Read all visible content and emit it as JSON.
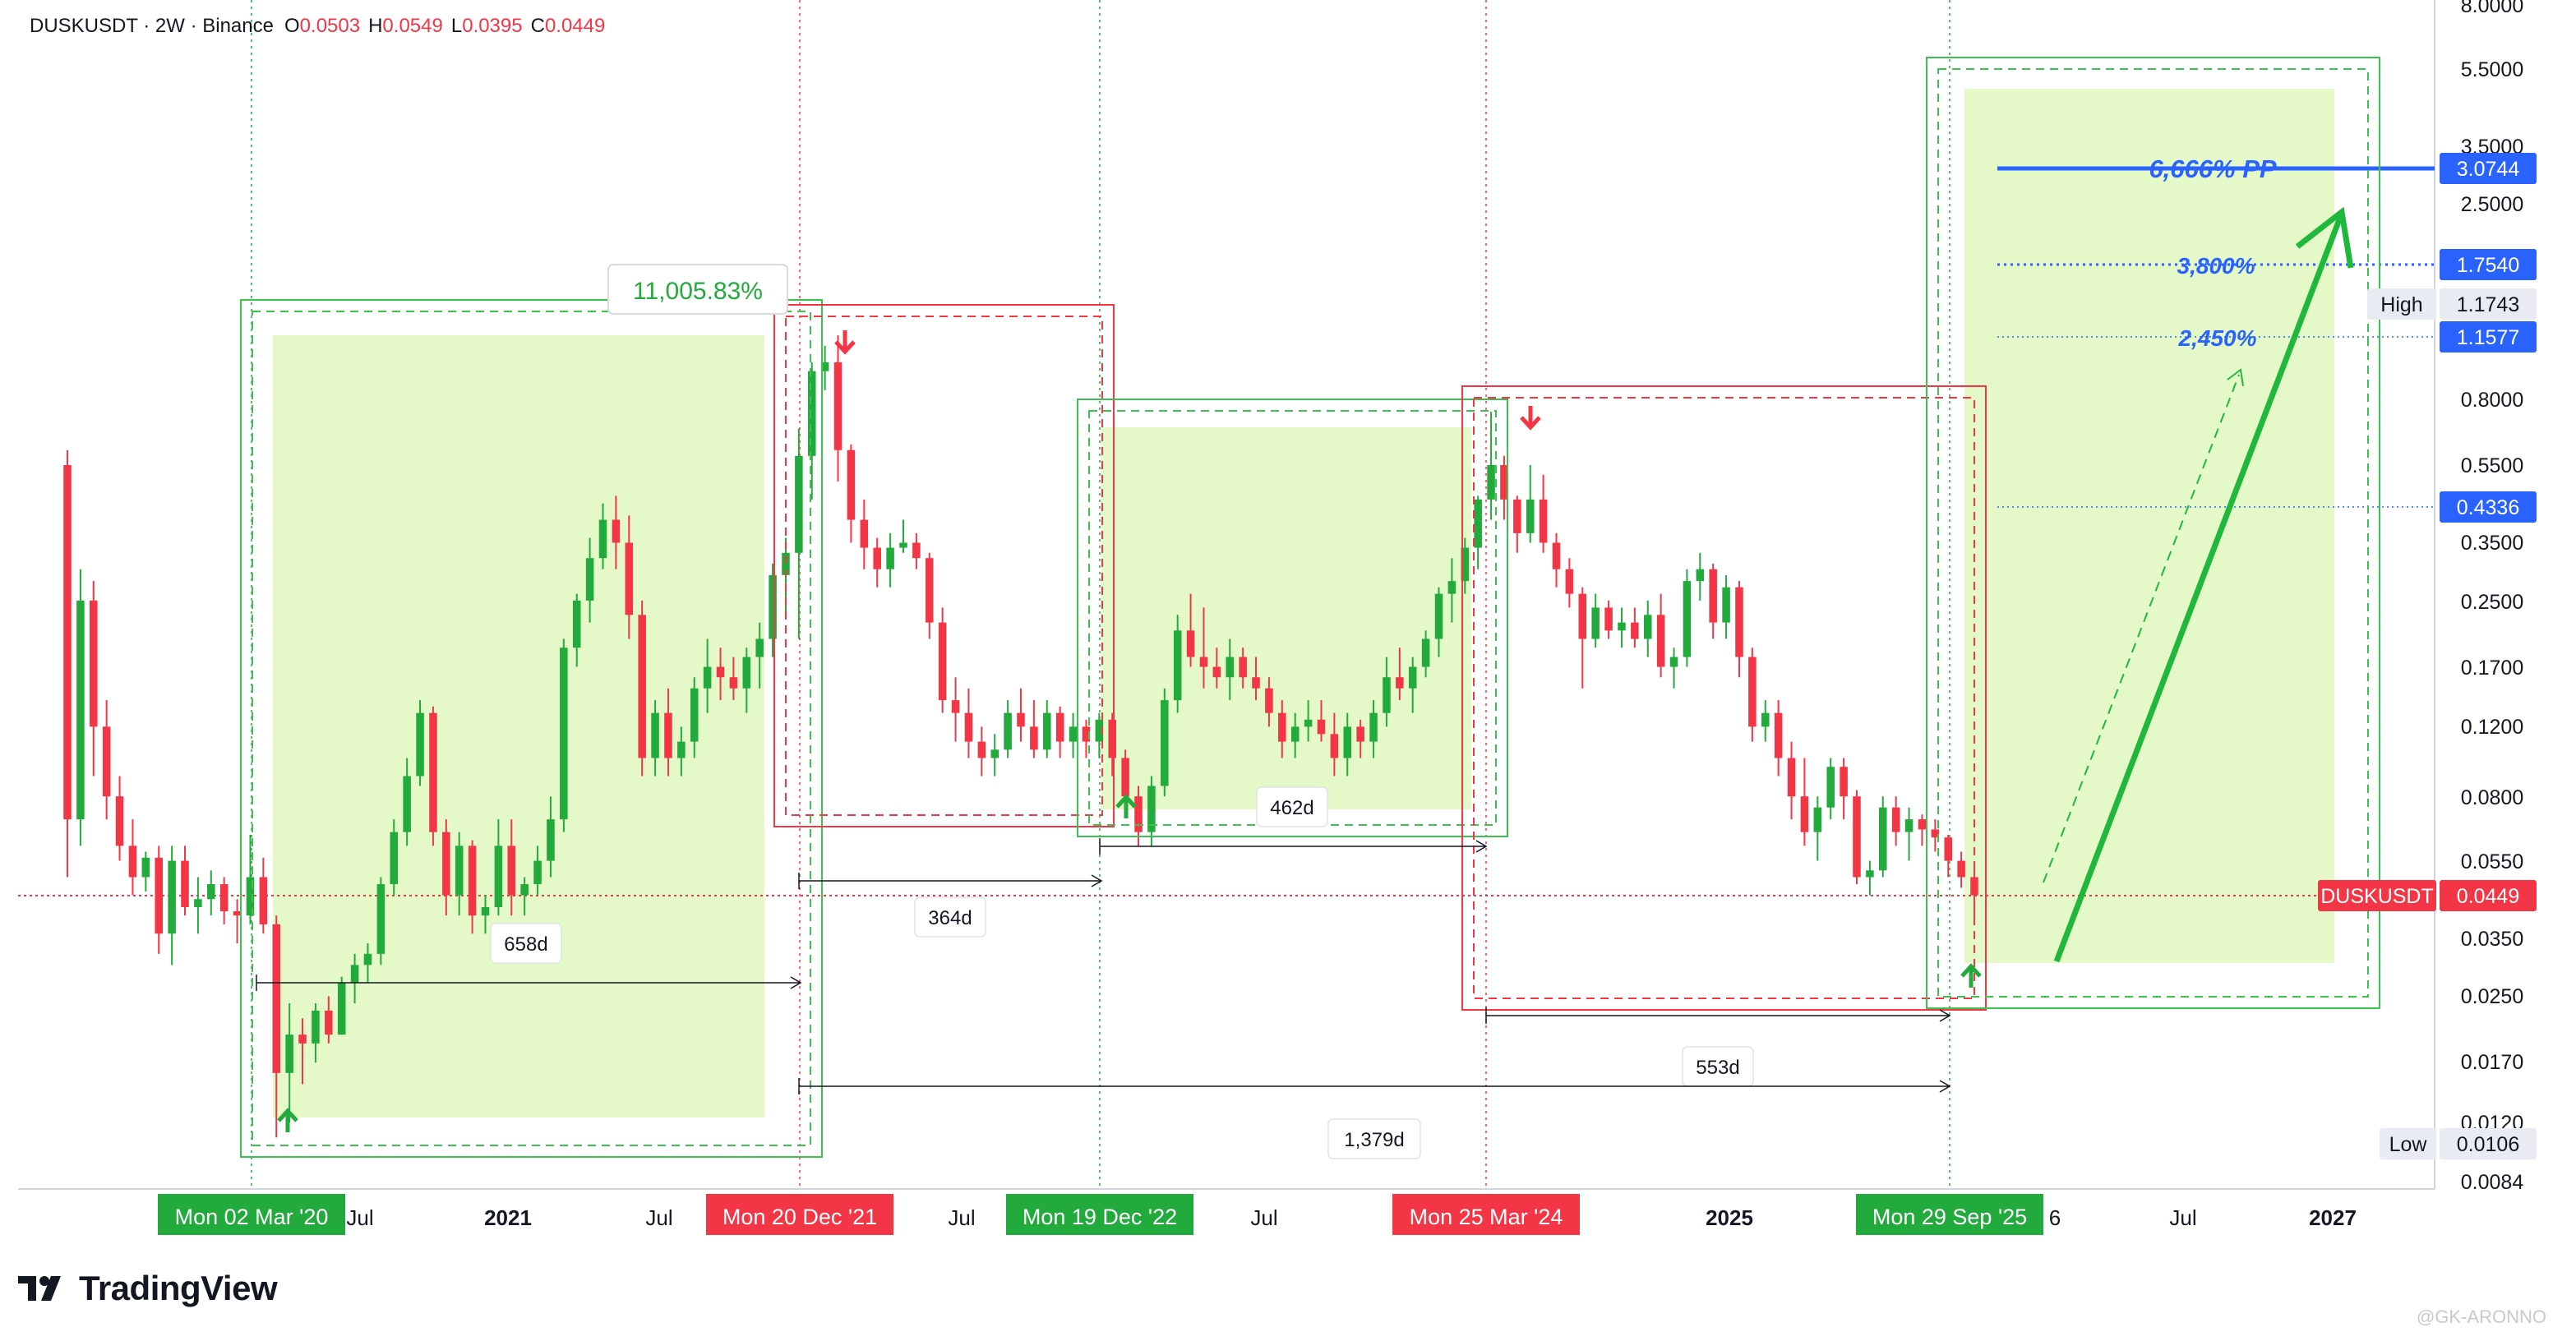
{
  "header": {
    "symbol": "DUSKUSDT · 2W · Binance",
    "open_label": "O",
    "open_value": "0.0503",
    "high_label": "H",
    "high_value": "0.0549",
    "low_label": "L",
    "low_value": "0.0395",
    "close_label": "C",
    "close_value": "0.0449"
  },
  "brand": {
    "name": "TradingView"
  },
  "watermark": "@GK-ARONNO",
  "colors": {
    "up": "#22ab3c",
    "down": "#f23645",
    "green_zone": "#e4f8c8",
    "green_box": "#3cc24f",
    "red_box": "#f23645",
    "blue": "#2962ff",
    "arrow_green": "#1fb83c"
  },
  "chart_data": {
    "type": "candlestick",
    "title": "DUSKUSDT · 2W · Binance",
    "y_scale": "log",
    "ylim": [
      0.0084,
      8.0
    ],
    "y_ticks": [
      "8.0000",
      "5.5000",
      "3.5000",
      "2.5000",
      "1.7500",
      "1.2000",
      "0.8000",
      "0.5500",
      "0.3500",
      "0.2500",
      "0.1700",
      "0.1200",
      "0.0800",
      "0.0550",
      "0.0350",
      "0.0250",
      "0.0170",
      "0.0120",
      "0.0084"
    ],
    "x_ticks": [
      "Jul",
      "2021",
      "Jul",
      "Jul",
      "Jul",
      "2025",
      "6",
      "Jul",
      "2027"
    ],
    "event_dates": [
      "Mon 02 Mar '20",
      "Mon 20 Dec '21",
      "Mon 19 Dec '22",
      "Mon 25 Mar '24",
      "Mon 29 Sep '25"
    ],
    "price_labels": [
      {
        "text": "3.0744",
        "color": "#2962ff"
      },
      {
        "text": "1.7540",
        "color": "#2962ff"
      },
      {
        "text": "1.1743",
        "prefix": "High",
        "color": "#e8ecf2"
      },
      {
        "text": "1.1577",
        "color": "#2962ff"
      },
      {
        "text": "0.4336",
        "color": "#2962ff"
      },
      {
        "text": "0.0449",
        "prefix": "DUSKUSDT",
        "color": "#f23645"
      },
      {
        "text": "0.0106",
        "prefix": "Low",
        "color": "#e8ecf2"
      }
    ],
    "annotations": {
      "gain": "11,005.83%",
      "targets": [
        "6,666% PP",
        "3,800%",
        "2,450%"
      ],
      "durations": [
        "658d",
        "364d",
        "462d",
        "553d",
        "1,379d"
      ]
    },
    "candles_approx": [
      [
        0.55,
        0.6,
        0.05,
        0.07
      ],
      [
        0.07,
        0.3,
        0.06,
        0.25
      ],
      [
        0.25,
        0.28,
        0.09,
        0.12
      ],
      [
        0.12,
        0.14,
        0.07,
        0.08
      ],
      [
        0.08,
        0.09,
        0.055,
        0.06
      ],
      [
        0.06,
        0.07,
        0.045,
        0.05
      ],
      [
        0.05,
        0.058,
        0.046,
        0.056
      ],
      [
        0.056,
        0.06,
        0.032,
        0.036
      ],
      [
        0.036,
        0.06,
        0.03,
        0.055
      ],
      [
        0.055,
        0.06,
        0.04,
        0.042
      ],
      [
        0.042,
        0.05,
        0.036,
        0.044
      ],
      [
        0.044,
        0.052,
        0.04,
        0.048
      ],
      [
        0.048,
        0.05,
        0.038,
        0.041
      ],
      [
        0.041,
        0.044,
        0.034,
        0.04
      ],
      [
        0.04,
        0.064,
        0.038,
        0.05
      ],
      [
        0.05,
        0.056,
        0.036,
        0.038
      ],
      [
        0.038,
        0.04,
        0.011,
        0.016
      ],
      [
        0.016,
        0.024,
        0.012,
        0.02
      ],
      [
        0.02,
        0.022,
        0.015,
        0.019
      ],
      [
        0.019,
        0.024,
        0.017,
        0.023
      ],
      [
        0.023,
        0.025,
        0.019,
        0.02
      ],
      [
        0.02,
        0.028,
        0.02,
        0.027
      ],
      [
        0.027,
        0.032,
        0.024,
        0.03
      ],
      [
        0.03,
        0.034,
        0.027,
        0.032
      ],
      [
        0.032,
        0.05,
        0.03,
        0.048
      ],
      [
        0.048,
        0.07,
        0.045,
        0.065
      ],
      [
        0.065,
        0.1,
        0.06,
        0.09
      ],
      [
        0.09,
        0.14,
        0.085,
        0.13
      ],
      [
        0.13,
        0.135,
        0.06,
        0.065
      ],
      [
        0.065,
        0.07,
        0.04,
        0.045
      ],
      [
        0.045,
        0.065,
        0.04,
        0.06
      ],
      [
        0.06,
        0.062,
        0.036,
        0.04
      ],
      [
        0.04,
        0.045,
        0.036,
        0.042
      ],
      [
        0.042,
        0.07,
        0.04,
        0.06
      ],
      [
        0.06,
        0.07,
        0.04,
        0.045
      ],
      [
        0.045,
        0.05,
        0.04,
        0.048
      ],
      [
        0.048,
        0.06,
        0.045,
        0.055
      ],
      [
        0.055,
        0.08,
        0.05,
        0.07
      ],
      [
        0.07,
        0.2,
        0.065,
        0.19
      ],
      [
        0.19,
        0.26,
        0.17,
        0.25
      ],
      [
        0.25,
        0.36,
        0.22,
        0.32
      ],
      [
        0.32,
        0.44,
        0.3,
        0.4
      ],
      [
        0.4,
        0.46,
        0.3,
        0.35
      ],
      [
        0.35,
        0.41,
        0.2,
        0.23
      ],
      [
        0.23,
        0.25,
        0.09,
        0.1
      ],
      [
        0.1,
        0.14,
        0.09,
        0.13
      ],
      [
        0.13,
        0.15,
        0.09,
        0.1
      ],
      [
        0.1,
        0.12,
        0.09,
        0.11
      ],
      [
        0.11,
        0.16,
        0.1,
        0.15
      ],
      [
        0.15,
        0.2,
        0.13,
        0.17
      ],
      [
        0.17,
        0.19,
        0.14,
        0.16
      ],
      [
        0.16,
        0.18,
        0.14,
        0.15
      ],
      [
        0.15,
        0.19,
        0.13,
        0.18
      ],
      [
        0.18,
        0.22,
        0.15,
        0.2
      ],
      [
        0.2,
        0.31,
        0.18,
        0.29
      ],
      [
        0.29,
        0.36,
        0.23,
        0.33
      ],
      [
        0.33,
        0.68,
        0.2,
        0.58
      ],
      [
        0.58,
        1.0,
        0.45,
        0.95
      ],
      [
        0.95,
        1.1,
        0.85,
        1.0
      ],
      [
        1.0,
        1.17,
        0.5,
        0.6
      ],
      [
        0.6,
        0.62,
        0.35,
        0.4
      ],
      [
        0.4,
        0.45,
        0.3,
        0.34
      ],
      [
        0.34,
        0.36,
        0.27,
        0.3
      ],
      [
        0.3,
        0.37,
        0.27,
        0.34
      ],
      [
        0.34,
        0.4,
        0.33,
        0.35
      ],
      [
        0.35,
        0.37,
        0.3,
        0.32
      ],
      [
        0.32,
        0.33,
        0.2,
        0.22
      ],
      [
        0.22,
        0.24,
        0.13,
        0.14
      ],
      [
        0.14,
        0.16,
        0.11,
        0.13
      ],
      [
        0.13,
        0.15,
        0.1,
        0.11
      ],
      [
        0.11,
        0.12,
        0.09,
        0.1
      ],
      [
        0.1,
        0.115,
        0.09,
        0.105
      ],
      [
        0.105,
        0.14,
        0.1,
        0.13
      ],
      [
        0.13,
        0.15,
        0.11,
        0.12
      ],
      [
        0.12,
        0.14,
        0.1,
        0.105
      ],
      [
        0.105,
        0.14,
        0.1,
        0.13
      ],
      [
        0.13,
        0.135,
        0.1,
        0.11
      ],
      [
        0.11,
        0.13,
        0.1,
        0.12
      ],
      [
        0.12,
        0.125,
        0.1,
        0.11
      ],
      [
        0.11,
        0.13,
        0.1,
        0.125
      ],
      [
        0.125,
        0.13,
        0.09,
        0.1
      ],
      [
        0.1,
        0.105,
        0.075,
        0.08
      ],
      [
        0.08,
        0.085,
        0.06,
        0.065
      ],
      [
        0.065,
        0.09,
        0.06,
        0.085
      ],
      [
        0.085,
        0.15,
        0.08,
        0.14
      ],
      [
        0.14,
        0.23,
        0.13,
        0.21
      ],
      [
        0.21,
        0.26,
        0.17,
        0.18
      ],
      [
        0.18,
        0.24,
        0.15,
        0.17
      ],
      [
        0.17,
        0.19,
        0.15,
        0.16
      ],
      [
        0.16,
        0.2,
        0.14,
        0.18
      ],
      [
        0.18,
        0.19,
        0.15,
        0.16
      ],
      [
        0.16,
        0.18,
        0.14,
        0.15
      ],
      [
        0.15,
        0.16,
        0.12,
        0.13
      ],
      [
        0.13,
        0.14,
        0.1,
        0.11
      ],
      [
        0.11,
        0.13,
        0.1,
        0.12
      ],
      [
        0.12,
        0.14,
        0.11,
        0.125
      ],
      [
        0.125,
        0.14,
        0.11,
        0.115
      ],
      [
        0.115,
        0.13,
        0.09,
        0.1
      ],
      [
        0.1,
        0.13,
        0.09,
        0.12
      ],
      [
        0.12,
        0.125,
        0.1,
        0.11
      ],
      [
        0.11,
        0.14,
        0.1,
        0.13
      ],
      [
        0.13,
        0.18,
        0.12,
        0.16
      ],
      [
        0.16,
        0.19,
        0.14,
        0.15
      ],
      [
        0.15,
        0.18,
        0.13,
        0.17
      ],
      [
        0.17,
        0.21,
        0.16,
        0.2
      ],
      [
        0.2,
        0.27,
        0.18,
        0.26
      ],
      [
        0.26,
        0.32,
        0.22,
        0.28
      ],
      [
        0.28,
        0.36,
        0.26,
        0.34
      ],
      [
        0.34,
        0.46,
        0.3,
        0.45
      ],
      [
        0.45,
        0.75,
        0.4,
        0.55
      ],
      [
        0.55,
        0.58,
        0.4,
        0.45
      ],
      [
        0.45,
        0.46,
        0.33,
        0.37
      ],
      [
        0.37,
        0.55,
        0.35,
        0.45
      ],
      [
        0.45,
        0.52,
        0.33,
        0.35
      ],
      [
        0.35,
        0.37,
        0.27,
        0.3
      ],
      [
        0.3,
        0.32,
        0.24,
        0.26
      ],
      [
        0.26,
        0.27,
        0.15,
        0.2
      ],
      [
        0.2,
        0.26,
        0.19,
        0.24
      ],
      [
        0.24,
        0.25,
        0.2,
        0.21
      ],
      [
        0.21,
        0.24,
        0.19,
        0.22
      ],
      [
        0.22,
        0.24,
        0.19,
        0.2
      ],
      [
        0.2,
        0.25,
        0.18,
        0.23
      ],
      [
        0.23,
        0.26,
        0.16,
        0.17
      ],
      [
        0.17,
        0.19,
        0.15,
        0.18
      ],
      [
        0.18,
        0.3,
        0.17,
        0.28
      ],
      [
        0.28,
        0.33,
        0.25,
        0.3
      ],
      [
        0.3,
        0.31,
        0.2,
        0.22
      ],
      [
        0.22,
        0.29,
        0.2,
        0.27
      ],
      [
        0.27,
        0.28,
        0.16,
        0.18
      ],
      [
        0.18,
        0.19,
        0.11,
        0.12
      ],
      [
        0.12,
        0.14,
        0.11,
        0.13
      ],
      [
        0.13,
        0.14,
        0.09,
        0.1
      ],
      [
        0.1,
        0.11,
        0.07,
        0.08
      ],
      [
        0.08,
        0.1,
        0.06,
        0.065
      ],
      [
        0.065,
        0.08,
        0.055,
        0.075
      ],
      [
        0.075,
        0.1,
        0.07,
        0.095
      ],
      [
        0.095,
        0.1,
        0.07,
        0.08
      ],
      [
        0.08,
        0.083,
        0.048,
        0.05
      ],
      [
        0.05,
        0.055,
        0.045,
        0.052
      ],
      [
        0.052,
        0.08,
        0.05,
        0.075
      ],
      [
        0.075,
        0.08,
        0.06,
        0.065
      ],
      [
        0.065,
        0.075,
        0.055,
        0.07
      ],
      [
        0.07,
        0.072,
        0.06,
        0.066
      ],
      [
        0.066,
        0.07,
        0.058,
        0.063
      ],
      [
        0.063,
        0.064,
        0.05,
        0.055
      ],
      [
        0.055,
        0.058,
        0.047,
        0.05
      ],
      [
        0.05,
        0.054,
        0.039,
        0.045
      ]
    ]
  }
}
